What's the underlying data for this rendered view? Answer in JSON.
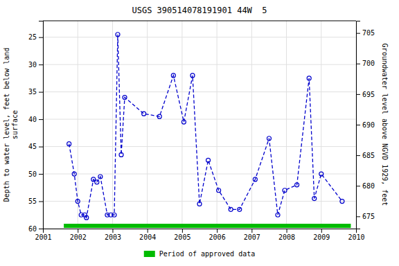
{
  "chart_data": {
    "type": "line",
    "title": "USGS 390514078191901 44W  5",
    "y_label": "Depth to water level, feet below land\nsurface",
    "y2_label": "Groundwater level above NGVD 1929, feet",
    "xlim": [
      2001,
      2010
    ],
    "xticks": [
      2001,
      2002,
      2003,
      2004,
      2005,
      2006,
      2007,
      2008,
      2009,
      2010
    ],
    "ylim": [
      60,
      22
    ],
    "yticks": [
      25,
      30,
      35,
      40,
      45,
      50,
      55,
      60
    ],
    "y2lim": [
      673,
      707
    ],
    "y2ticks": [
      705,
      700,
      695,
      690,
      685,
      680,
      675
    ],
    "grid": true,
    "legend": "bottom",
    "series": [
      {
        "color": "#0000cc",
        "line_style": "dashed",
        "marker": "circle",
        "x": [
          2001.75,
          2001.9,
          2002.0,
          2002.1,
          2002.2,
          2002.25,
          2002.45,
          2002.55,
          2002.65,
          2002.85,
          2002.95,
          2003.05,
          2003.15,
          2003.25,
          2003.35,
          2003.9,
          2004.35,
          2004.75,
          2005.05,
          2005.3,
          2005.5,
          2005.75,
          2006.05,
          2006.4,
          2006.65,
          2007.1,
          2007.5,
          2007.75,
          2007.95,
          2008.3,
          2008.65,
          2008.8,
          2009.0,
          2009.6
        ],
        "values": [
          44.5,
          50.0,
          55.0,
          57.5,
          57.5,
          58.0,
          51.0,
          51.5,
          50.5,
          57.5,
          57.5,
          57.5,
          24.5,
          46.5,
          36.0,
          39.0,
          39.5,
          32.0,
          40.5,
          32.0,
          55.5,
          47.5,
          53.0,
          56.5,
          56.5,
          51.0,
          43.5,
          57.5,
          53.0,
          52.0,
          32.5,
          54.5,
          50.0,
          55.0
        ]
      },
      {
        "name": "Period of approved data",
        "color": "#00bb00",
        "line_style": "solid",
        "x": [
          2001.6,
          2009.85
        ],
        "values": [
          59.5,
          59.5
        ]
      }
    ]
  }
}
